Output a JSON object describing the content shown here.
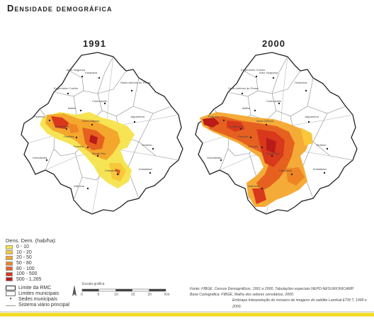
{
  "title": "Densidade demográfica",
  "maps": [
    {
      "year": "1991",
      "places": [
        "Artur Nogueira",
        "Holambra",
        "Santo Antônio de Posse",
        "Engenheiro Coelho",
        "Cosmópolis",
        "Jaguariúna",
        "Pedreira",
        "Americana",
        "Nova Odessa",
        "Paulínia",
        "Sumaré",
        "Hortolândia",
        "Monte Mor",
        "Campinas",
        "Valinhos",
        "Indaiatuba",
        "Vinhedo",
        "Itatiba"
      ]
    },
    {
      "year": "2000",
      "places": [
        "Engenheiro Coelho",
        "Artur Nogueira",
        "Holambra",
        "Santo Antônio de Posse",
        "Cosmópolis",
        "Jaguariúna",
        "Pedreira",
        "Americana",
        "Nova Odessa",
        "Paulínia",
        "Sumaré",
        "Hortolândia",
        "Monte Mor",
        "Campinas",
        "Valinhos",
        "Indaiatuba",
        "Vinhedo",
        "Itatiba"
      ]
    }
  ],
  "legend": {
    "title": "Dens. Dem. (hab/ha):",
    "classes": [
      {
        "label": "0 - 10",
        "color": "#f5e34b"
      },
      {
        "label": "10 - 20",
        "color": "#f7c83a"
      },
      {
        "label": "20 - 50",
        "color": "#f4a72c"
      },
      {
        "label": "50 - 80",
        "color": "#ef8424"
      },
      {
        "label": "80 - 100",
        "color": "#e6611f"
      },
      {
        "label": "100 - 500",
        "color": "#d8381c"
      },
      {
        "label": "500 - 1.265",
        "color": "#b81b18"
      }
    ],
    "symbols": [
      {
        "label": "Limite da RMC",
        "icon": "rmc-boundary"
      },
      {
        "label": "Limites municipais",
        "icon": "municipal-boundary"
      },
      {
        "label": "Sedes municipais",
        "icon": "municipal-seat"
      },
      {
        "label": "Sistema viário principal",
        "icon": "road"
      }
    ]
  },
  "scale": {
    "label": "Escala gráfica",
    "ticks": [
      "0",
      "5",
      "10",
      "15",
      "20",
      "Km"
    ]
  },
  "credits": [
    {
      "key": "Fonte:",
      "text": "FIBGE, Censos Demográficos, 1991 e 2000. Tabulações especiais NEPO-NESUR/UNICAMP."
    },
    {
      "key": "Base Cartográfica:",
      "text": "FIBGE, Malha dos setores censitários, 2000."
    },
    {
      "key": "",
      "text": "Embrapa Interpretação do mosaico de imagens do satélite Landsat ETM 7, 1999 e 2000."
    }
  ],
  "colors": {
    "footer": "#f0dc1e",
    "boundary": "#222222",
    "municipal": "#8a8a8a"
  }
}
